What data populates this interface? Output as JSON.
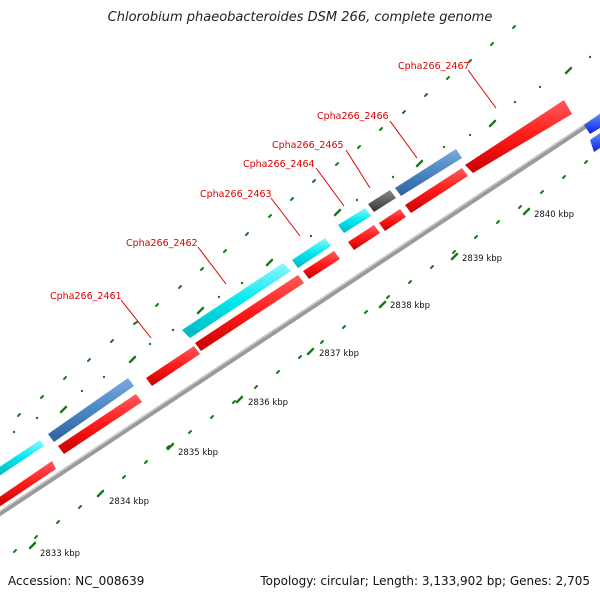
{
  "title": "Chlorobium phaeobacteroides DSM 266, complete genome",
  "accession": "Accession: NC_008639",
  "summary": "Topology: circular; Length: 3,133,902 bp; Genes: 2,705",
  "colors": {
    "cds_forward": "#1e7fff",
    "cds_red": "#ff1a1a",
    "cds_cyan": "#00e8f0",
    "cds_steel": "#4a86c5",
    "cds_gray": "#555555",
    "backbone": "#8a8a8a",
    "tick": "#1a7a1a",
    "gene_label": "#dd0000"
  },
  "ticks": [
    {
      "kbp": 2833,
      "label": "2833 kbp"
    },
    {
      "kbp": 2834,
      "label": "2834 kbp"
    },
    {
      "kbp": 2835,
      "label": "2835 kbp"
    },
    {
      "kbp": 2836,
      "label": "2836 kbp"
    },
    {
      "kbp": 2837,
      "label": "2837 kbp"
    },
    {
      "kbp": 2838,
      "label": "2838 kbp"
    },
    {
      "kbp": 2839,
      "label": "2839 kbp"
    },
    {
      "kbp": 2840,
      "label": "2840 kbp"
    }
  ],
  "gene_labels": [
    "Cpha266_2461",
    "Cpha266_2462",
    "Cpha266_2463",
    "Cpha266_2464",
    "Cpha266_2465",
    "Cpha266_2466",
    "Cpha266_2467"
  ]
}
